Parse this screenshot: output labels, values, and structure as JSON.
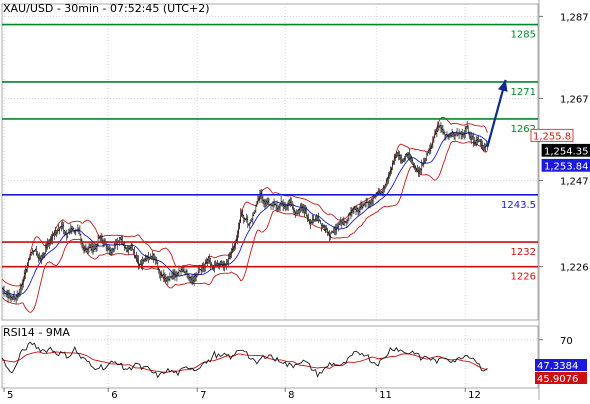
{
  "header": {
    "title": "XAU/USD - 30min - 07:52:45 (UTC+2)"
  },
  "chart_data": [
    {
      "type": "candlestick",
      "title": "XAU/USD - 30min - 07:52:45 (UTC+2)",
      "y_range": [
        1213,
        1290
      ],
      "y_ticks": [
        "1,287",
        "1,267",
        "1,247",
        "1,226"
      ],
      "y_tick_values": [
        1287,
        1267,
        1247,
        1226
      ],
      "x_ticks": [
        "5",
        "6",
        "7",
        "8",
        "11",
        "12"
      ],
      "x_tick_positions_bars": [
        2,
        105,
        193,
        280,
        370,
        458
      ],
      "total_bars": 480,
      "grid": true,
      "price_series": [
        [
          0,
          1220.7
        ],
        [
          4,
          1219.4
        ],
        [
          8,
          1218.6
        ],
        [
          12,
          1218.5
        ],
        [
          16,
          1219.2
        ],
        [
          20,
          1222.2
        ],
        [
          24,
          1225.6
        ],
        [
          28,
          1229.1
        ],
        [
          32,
          1230.2
        ],
        [
          36,
          1228.1
        ],
        [
          40,
          1228.5
        ],
        [
          44,
          1230.9
        ],
        [
          48,
          1232.4
        ],
        [
          52,
          1234.3
        ],
        [
          56,
          1235.5
        ],
        [
          60,
          1235.6
        ],
        [
          64,
          1233.3
        ],
        [
          68,
          1235.5
        ],
        [
          72,
          1234.7
        ],
        [
          76,
          1234.4
        ],
        [
          80,
          1230.5
        ],
        [
          84,
          1230.5
        ],
        [
          88,
          1230.4
        ],
        [
          92,
          1230.3
        ],
        [
          96,
          1233.1
        ],
        [
          100,
          1232.3
        ],
        [
          104,
          1230.9
        ],
        [
          108,
          1229.3
        ],
        [
          112,
          1231.6
        ],
        [
          116,
          1233.1
        ],
        [
          120,
          1231.4
        ],
        [
          124,
          1230.3
        ],
        [
          128,
          1231.1
        ],
        [
          132,
          1228.5
        ],
        [
          136,
          1226.5
        ],
        [
          140,
          1227.4
        ],
        [
          144,
          1228.0
        ],
        [
          148,
          1228.8
        ],
        [
          152,
          1227.9
        ],
        [
          156,
          1224.2
        ],
        [
          160,
          1223.4
        ],
        [
          164,
          1222.6
        ],
        [
          168,
          1223.6
        ],
        [
          172,
          1223.8
        ],
        [
          176,
          1224.8
        ],
        [
          180,
          1224.7
        ],
        [
          184,
          1223.9
        ],
        [
          188,
          1222.2
        ],
        [
          192,
          1224.1
        ],
        [
          196,
          1225.1
        ],
        [
          200,
          1226.4
        ],
        [
          204,
          1227.8
        ],
        [
          208,
          1226.1
        ],
        [
          212,
          1226.2
        ],
        [
          216,
          1226.9
        ],
        [
          220,
          1226.1
        ],
        [
          224,
          1228.0
        ],
        [
          228,
          1230.9
        ],
        [
          232,
          1232.6
        ],
        [
          236,
          1239.3
        ],
        [
          240,
          1237.9
        ],
        [
          244,
          1236.4
        ],
        [
          248,
          1238.2
        ],
        [
          252,
          1241.5
        ],
        [
          256,
          1243.4
        ],
        [
          260,
          1241.8
        ],
        [
          264,
          1241.3
        ],
        [
          268,
          1241.2
        ],
        [
          272,
          1240.4
        ],
        [
          276,
          1241.4
        ],
        [
          280,
          1240.7
        ],
        [
          284,
          1241.8
        ],
        [
          288,
          1239.9
        ],
        [
          292,
          1239.0
        ],
        [
          296,
          1240.4
        ],
        [
          300,
          1239.3
        ],
        [
          304,
          1236.9
        ],
        [
          308,
          1237.0
        ],
        [
          312,
          1238.0
        ],
        [
          316,
          1236.2
        ],
        [
          320,
          1235.1
        ],
        [
          324,
          1233.8
        ],
        [
          328,
          1235.3
        ],
        [
          332,
          1235.8
        ],
        [
          336,
          1237.0
        ],
        [
          340,
          1236.3
        ],
        [
          344,
          1239.2
        ],
        [
          348,
          1240.2
        ],
        [
          352,
          1239.5
        ],
        [
          356,
          1240.9
        ],
        [
          360,
          1242.1
        ],
        [
          364,
          1241.5
        ],
        [
          368,
          1243.4
        ],
        [
          372,
          1244.3
        ],
        [
          376,
          1244.3
        ],
        [
          380,
          1246.5
        ],
        [
          384,
          1249.1
        ],
        [
          388,
          1252.4
        ],
        [
          392,
          1253.6
        ],
        [
          396,
          1251.5
        ],
        [
          400,
          1253.6
        ],
        [
          404,
          1252.8
        ],
        [
          408,
          1250.1
        ],
        [
          412,
          1249.3
        ],
        [
          416,
          1251.1
        ],
        [
          420,
          1252.9
        ],
        [
          424,
          1255.1
        ],
        [
          428,
          1257.9
        ],
        [
          432,
          1260.4
        ],
        [
          436,
          1258.9
        ],
        [
          440,
          1258.1
        ],
        [
          444,
          1258.4
        ],
        [
          448,
          1258.3
        ],
        [
          452,
          1258.3
        ],
        [
          456,
          1258.7
        ],
        [
          460,
          1260.0
        ],
        [
          464,
          1257.3
        ],
        [
          468,
          1256.5
        ],
        [
          472,
          1257.2
        ],
        [
          476,
          1254.9
        ],
        [
          480,
          1255.3
        ]
      ],
      "price_labels": [
        {
          "text": "1,255.8",
          "value": 1255.8
        },
        {
          "text": "1,254.35",
          "value": 1254.35
        },
        {
          "text": "1,253.84",
          "value": 1253.84
        }
      ],
      "horizontal_levels": [
        {
          "label": "1285",
          "value": 1285,
          "color": "#00872a"
        },
        {
          "label": "1271",
          "value": 1271,
          "color": "#00872a"
        },
        {
          "label": "1262",
          "value": 1262,
          "color": "#00872a"
        },
        {
          "label": "1243.5",
          "value": 1243.5,
          "color": "#1a1adb"
        },
        {
          "label": "1232",
          "value": 1232,
          "color": "#cc0f0f"
        },
        {
          "label": "1226",
          "value": 1226,
          "color": "#cc0f0f"
        }
      ],
      "arrow": {
        "from_bar": 480,
        "from_value": 1255.2,
        "to_bar": 498,
        "to_value": 1271.5,
        "color": "#102a8a"
      },
      "colors": {
        "candles": "#1a1a1a",
        "bands": "#c41a1a",
        "moving_average": "#1a1adb"
      }
    },
    {
      "type": "line",
      "title": "RSI14 - 9MA",
      "y_range": [
        35,
        80
      ],
      "y_ticks": [
        "70"
      ],
      "y_tick_values": [
        70
      ],
      "grid": true,
      "series_rsi": [
        [
          0,
          57.4
        ],
        [
          6,
          47.9
        ],
        [
          12,
          47.5
        ],
        [
          18,
          59.3
        ],
        [
          24,
          64.4
        ],
        [
          30,
          67.6
        ],
        [
          36,
          63.9
        ],
        [
          42,
          62.0
        ],
        [
          48,
          63.8
        ],
        [
          54,
          60.4
        ],
        [
          60,
          60.0
        ],
        [
          66,
          58.0
        ],
        [
          72,
          63.5
        ],
        [
          78,
          57.1
        ],
        [
          84,
          54.5
        ],
        [
          90,
          49.5
        ],
        [
          96,
          51.0
        ],
        [
          102,
          49.6
        ],
        [
          108,
          53.0
        ],
        [
          114,
          54.0
        ],
        [
          120,
          49.5
        ],
        [
          126,
          48.5
        ],
        [
          132,
          53.2
        ],
        [
          138,
          49.3
        ],
        [
          144,
          49.2
        ],
        [
          150,
          45.4
        ],
        [
          156,
          43.6
        ],
        [
          162,
          47.9
        ],
        [
          168,
          46.9
        ],
        [
          174,
          45.6
        ],
        [
          180,
          48.6
        ],
        [
          186,
          50.7
        ],
        [
          192,
          48.1
        ],
        [
          198,
          53.1
        ],
        [
          204,
          53.6
        ],
        [
          210,
          59.6
        ],
        [
          216,
          57.3
        ],
        [
          222,
          58.8
        ],
        [
          228,
          56.9
        ],
        [
          234,
          63.0
        ],
        [
          240,
          63.1
        ],
        [
          246,
          55.3
        ],
        [
          252,
          52.9
        ],
        [
          258,
          57.4
        ],
        [
          264,
          59.6
        ],
        [
          270,
          55.5
        ],
        [
          276,
          55.2
        ],
        [
          282,
          51.6
        ],
        [
          288,
          51.4
        ],
        [
          294,
          54.4
        ],
        [
          300,
          53.8
        ],
        [
          306,
          49.5
        ],
        [
          312,
          45.0
        ],
        [
          318,
          47.4
        ],
        [
          324,
          52.7
        ],
        [
          330,
          52.2
        ],
        [
          336,
          50.8
        ],
        [
          342,
          55.0
        ],
        [
          348,
          59.6
        ],
        [
          354,
          60.4
        ],
        [
          360,
          59.8
        ],
        [
          366,
          53.9
        ],
        [
          372,
          53.1
        ],
        [
          378,
          56.3
        ],
        [
          384,
          63.3
        ],
        [
          390,
          64.1
        ],
        [
          396,
          61.3
        ],
        [
          402,
          60.5
        ],
        [
          408,
          61.4
        ],
        [
          414,
          56.1
        ],
        [
          420,
          57.9
        ],
        [
          426,
          55.2
        ],
        [
          432,
          54.4
        ],
        [
          438,
          57.6
        ],
        [
          444,
          55.2
        ],
        [
          450,
          55.1
        ],
        [
          456,
          58.7
        ],
        [
          462,
          58.7
        ],
        [
          468,
          55.7
        ],
        [
          474,
          49.6
        ],
        [
          480,
          47.4
        ]
      ],
      "series_ma": [
        [
          0,
          55.4
        ],
        [
          6,
          54.5
        ],
        [
          12,
          53.9
        ],
        [
          18,
          55.7
        ],
        [
          24,
          59.0
        ],
        [
          30,
          60.3
        ],
        [
          36,
          61.3
        ],
        [
          42,
          59.9
        ],
        [
          48,
          60.5
        ],
        [
          54,
          61.2
        ],
        [
          60,
          60.5
        ],
        [
          66,
          60.6
        ],
        [
          72,
          60.3
        ],
        [
          78,
          59.9
        ],
        [
          84,
          58.4
        ],
        [
          90,
          55.6
        ],
        [
          96,
          54.6
        ],
        [
          102,
          53.7
        ],
        [
          108,
          52.5
        ],
        [
          114,
          52.5
        ],
        [
          120,
          51.7
        ],
        [
          126,
          51.9
        ],
        [
          132,
          49.6
        ],
        [
          138,
          49.5
        ],
        [
          144,
          48.2
        ],
        [
          150,
          47.5
        ],
        [
          156,
          46.9
        ],
        [
          162,
          46.2
        ],
        [
          168,
          47.3
        ],
        [
          174,
          47.3
        ],
        [
          180,
          48.2
        ],
        [
          186,
          48.3
        ],
        [
          192,
          50.2
        ],
        [
          198,
          53.2
        ],
        [
          204,
          54.5
        ],
        [
          210,
          54.9
        ],
        [
          216,
          56.5
        ],
        [
          222,
          58.3
        ],
        [
          228,
          57.9
        ],
        [
          234,
          59.8
        ],
        [
          240,
          59.0
        ],
        [
          246,
          58.7
        ],
        [
          252,
          58.6
        ],
        [
          258,
          58.4
        ],
        [
          264,
          56.5
        ],
        [
          270,
          55.4
        ],
        [
          276,
          55.4
        ],
        [
          282,
          54.1
        ],
        [
          288,
          54.1
        ],
        [
          294,
          51.7
        ],
        [
          300,
          51.1
        ],
        [
          306,
          50.2
        ],
        [
          312,
          49.5
        ],
        [
          318,
          50.1
        ],
        [
          324,
          49.2
        ],
        [
          330,
          52.0
        ],
        [
          336,
          51.1
        ],
        [
          342,
          53.8
        ],
        [
          348,
          53.6
        ],
        [
          354,
          54.3
        ],
        [
          360,
          55.8
        ],
        [
          366,
          57.6
        ],
        [
          372,
          56.2
        ],
        [
          378,
          56.8
        ],
        [
          384,
          57.7
        ],
        [
          390,
          58.1
        ],
        [
          396,
          59.7
        ],
        [
          402,
          59.8
        ],
        [
          408,
          58.7
        ],
        [
          414,
          57.4
        ],
        [
          420,
          55.9
        ],
        [
          426,
          57.3
        ],
        [
          432,
          58.1
        ],
        [
          438,
          56.2
        ],
        [
          444,
          55.4
        ],
        [
          450,
          55.9
        ],
        [
          456,
          54.7
        ],
        [
          462,
          54.1
        ],
        [
          468,
          52.0
        ],
        [
          474,
          49.5
        ],
        [
          480,
          48.1
        ]
      ],
      "value_labels": [
        {
          "text": "47.3384",
          "value": 47.3384,
          "bg": "#1a1adb"
        },
        {
          "text": "45.9076",
          "value": 45.9076,
          "bg": "#cc0f0f"
        }
      ],
      "colors": {
        "rsi": "#1a1a1a",
        "ma": "#cc0f0f"
      }
    }
  ]
}
